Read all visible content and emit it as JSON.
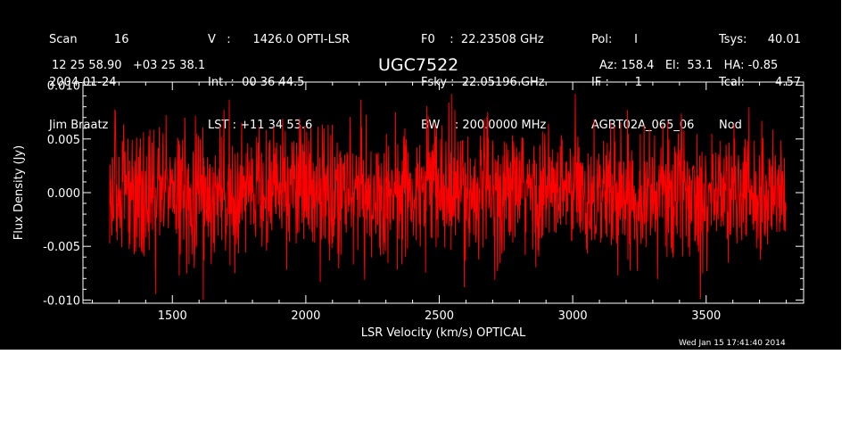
{
  "header": {
    "col1": [
      "Scan          16",
      "2004-01-24",
      "Jim Braatz"
    ],
    "col2": [
      "V   :      1426.0 OPTI-LSR",
      "Int  :  00 36 44.5",
      "LST : +11 34 53.6"
    ],
    "col3": [
      "F0    :  22.23508 GHz",
      "Fsky :  22.05196 GHz",
      "BW    : 200.0000 MHz"
    ],
    "col4": [
      "Pol:      I",
      "IF :       1",
      "AGBT02A_065_06"
    ],
    "col5": [
      "Tsys:",
      "Tcal:",
      "Nod"
    ],
    "col6": [
      "40.01",
      "4.57",
      ""
    ],
    "coords": "12 25 58.90   +03 25 38.1",
    "source": "UGC7522",
    "azel": "Az: 158.4   El:  53.1   HA: -0.85",
    "timestamp": "Wed Jan 15 17:41:40 2014"
  },
  "colors": {
    "background": "#000000",
    "axes": "#ffffff",
    "trace": "#ff0000"
  },
  "chart_data": {
    "type": "line",
    "title": "UGC7522",
    "xlabel": "LSR Velocity (km/s) OPTICAL",
    "ylabel": "Flux Density (Jy)",
    "xlim": [
      1165,
      3865
    ],
    "ylim": [
      -0.0103,
      0.0103
    ],
    "xticks": [
      1500,
      2000,
      2500,
      3000,
      3500
    ],
    "xtick_labels": [
      "1500",
      "2000",
      "2500",
      "3000",
      "3500"
    ],
    "yticks": [
      -0.01,
      -0.005,
      0.0,
      0.005,
      0.01
    ],
    "ytick_labels": [
      "-0.010",
      "-0.005",
      "0.000",
      "0.005",
      "0.010"
    ],
    "series": [
      {
        "color": "#ff0000",
        "x_start": 1265,
        "x_end": 3800,
        "n_points": 1800,
        "mean": 0.0,
        "noise_rms": 0.003,
        "max": 0.0092,
        "min": -0.01
      }
    ],
    "grid": false
  }
}
